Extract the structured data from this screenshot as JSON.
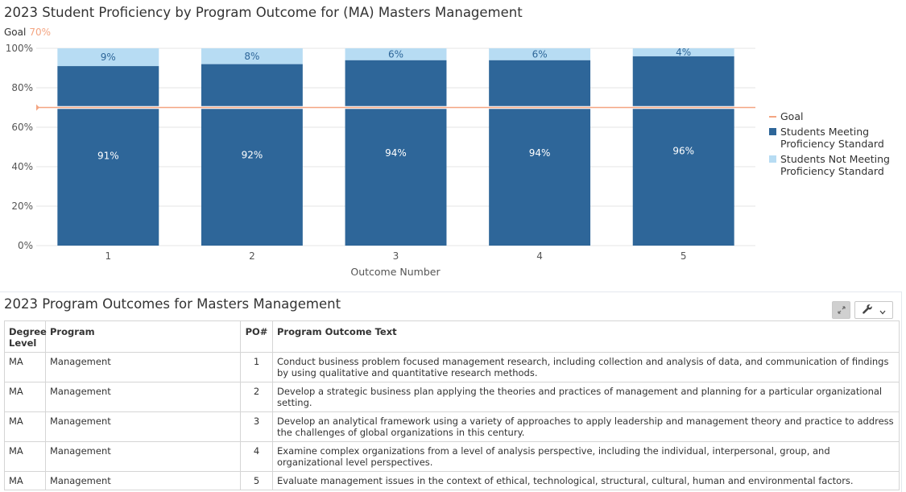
{
  "chart_title": "2023 Student Proficiency by Program Outcome for (MA) Masters Management",
  "goal_caption": {
    "label": "Goal",
    "value": "70%"
  },
  "chart_data": {
    "type": "bar",
    "stacked": true,
    "categories": [
      "1",
      "2",
      "3",
      "4",
      "5"
    ],
    "series": [
      {
        "name": "Students Meeting Proficiency Standard",
        "values": [
          91,
          92,
          94,
          94,
          96
        ],
        "labels": [
          "91%",
          "92%",
          "94%",
          "94%",
          "96%"
        ],
        "color": "#2e6699"
      },
      {
        "name": "Students Not Meeting Proficiency Standard",
        "values": [
          9,
          8,
          6,
          6,
          4
        ],
        "labels": [
          "9%",
          "8%",
          "6%",
          "6%",
          "4%"
        ],
        "color": "#b7dcf3"
      }
    ],
    "goal": 70,
    "goal_color": "#f4a582",
    "xlabel": "Outcome Number",
    "ylabel": "",
    "ylim": [
      0,
      100
    ],
    "yticks": [
      "0%",
      "20%",
      "40%",
      "60%",
      "80%",
      "100%"
    ],
    "grid": true,
    "legend_position": "right"
  },
  "legend": [
    {
      "label": "Goal",
      "color": "#f4a582",
      "shape": "line"
    },
    {
      "label": "Students Meeting Proficiency Standard",
      "color": "#2e6699",
      "shape": "square"
    },
    {
      "label": "Students Not Meeting Proficiency Standard",
      "color": "#b7dcf3",
      "shape": "square"
    }
  ],
  "table": {
    "title": "2023 Program Outcomes for Masters Management",
    "headers": {
      "degree": "Degree Level",
      "program": "Program",
      "po": "PO#",
      "text": "Program Outcome Text"
    },
    "rows": [
      {
        "degree": "MA",
        "program": "Management",
        "po": "1",
        "text": "Conduct business problem focused management research, including collection and analysis of data, and communication of findings by using qualitative and quantitative research methods."
      },
      {
        "degree": "MA",
        "program": "Management",
        "po": "2",
        "text": "Develop a strategic business plan applying the theories and practices of management and planning for a particular organizational setting."
      },
      {
        "degree": "MA",
        "program": "Management",
        "po": "3",
        "text": "Develop an analytical framework using a variety of approaches to apply leadership and management theory and practice to address the challenges of global organizations in this century."
      },
      {
        "degree": "MA",
        "program": "Management",
        "po": "4",
        "text": "Examine complex organizations from a level of analysis perspective, including the individual, interpersonal, group, and organizational level perspectives."
      },
      {
        "degree": "MA",
        "program": "Management",
        "po": "5",
        "text": "Evaluate management issues in the context of ethical, technological, structural, cultural, human and environmental factors."
      }
    ]
  },
  "toolbar": {
    "expand_icon": "expand-icon",
    "wrench_icon": "wrench-icon",
    "menu_icon": "chevron-down-icon"
  }
}
